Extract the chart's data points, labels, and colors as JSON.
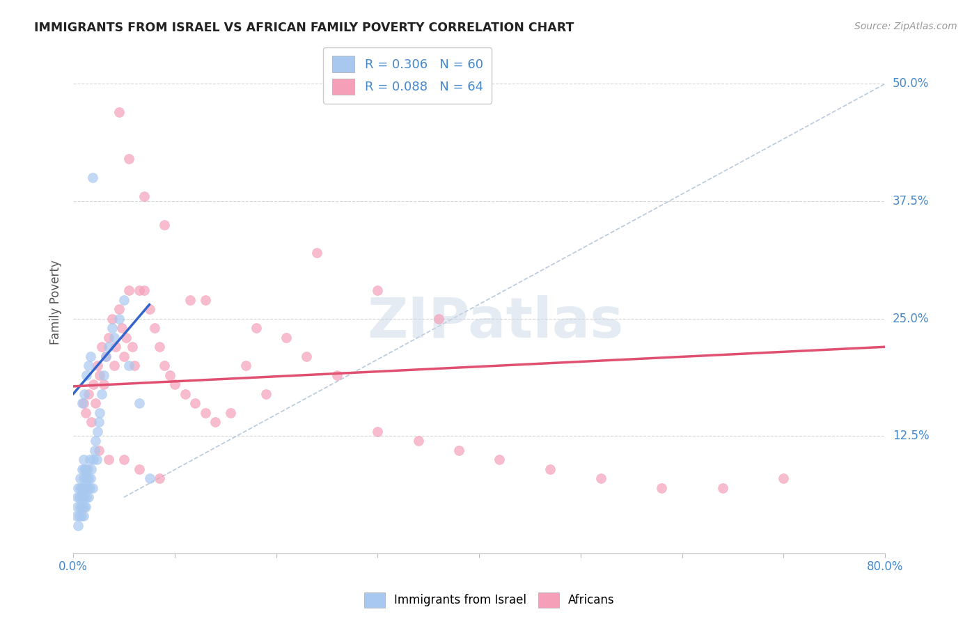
{
  "title": "IMMIGRANTS FROM ISRAEL VS AFRICAN FAMILY POVERTY CORRELATION CHART",
  "source": "Source: ZipAtlas.com",
  "ylabel": "Family Poverty",
  "ytick_values": [
    0.0,
    0.125,
    0.25,
    0.375,
    0.5
  ],
  "ytick_labels": [
    "",
    "12.5%",
    "25.0%",
    "37.5%",
    "50.0%"
  ],
  "xlim": [
    0.0,
    0.8
  ],
  "ylim": [
    0.0,
    0.535
  ],
  "legend_r1": "R = 0.306   N = 60",
  "legend_r2": "R = 0.088   N = 64",
  "watermark": "ZIPatlas",
  "background_color": "#ffffff",
  "grid_color": "#cccccc",
  "blue_scatter_color": "#a8c8f0",
  "pink_scatter_color": "#f5a0b8",
  "blue_line_color": "#3366cc",
  "pink_line_color": "#e05070",
  "dashed_line_color": "#b0c4d8",
  "axis_label_color": "#4488cc",
  "title_color": "#222222",
  "source_color": "#999999",
  "blue_points_x": [
    0.003,
    0.004,
    0.004,
    0.005,
    0.005,
    0.006,
    0.006,
    0.007,
    0.007,
    0.007,
    0.008,
    0.008,
    0.009,
    0.009,
    0.009,
    0.01,
    0.01,
    0.01,
    0.01,
    0.011,
    0.011,
    0.011,
    0.012,
    0.012,
    0.012,
    0.013,
    0.013,
    0.014,
    0.014,
    0.015,
    0.015,
    0.016,
    0.016,
    0.017,
    0.018,
    0.019,
    0.02,
    0.021,
    0.022,
    0.023,
    0.024,
    0.025,
    0.026,
    0.028,
    0.03,
    0.032,
    0.035,
    0.038,
    0.04,
    0.045,
    0.05,
    0.055,
    0.065,
    0.075,
    0.009,
    0.011,
    0.013,
    0.015,
    0.017,
    0.019
  ],
  "blue_points_y": [
    0.04,
    0.05,
    0.06,
    0.03,
    0.07,
    0.04,
    0.06,
    0.05,
    0.07,
    0.08,
    0.04,
    0.06,
    0.05,
    0.07,
    0.09,
    0.04,
    0.06,
    0.08,
    0.1,
    0.05,
    0.07,
    0.09,
    0.05,
    0.07,
    0.09,
    0.06,
    0.08,
    0.07,
    0.09,
    0.06,
    0.08,
    0.07,
    0.1,
    0.08,
    0.09,
    0.07,
    0.1,
    0.11,
    0.12,
    0.1,
    0.13,
    0.14,
    0.15,
    0.17,
    0.19,
    0.21,
    0.22,
    0.24,
    0.23,
    0.25,
    0.27,
    0.2,
    0.16,
    0.08,
    0.16,
    0.17,
    0.19,
    0.2,
    0.21,
    0.4
  ],
  "pink_points_x": [
    0.01,
    0.012,
    0.015,
    0.018,
    0.02,
    0.022,
    0.024,
    0.026,
    0.028,
    0.03,
    0.032,
    0.035,
    0.038,
    0.04,
    0.042,
    0.045,
    0.048,
    0.05,
    0.052,
    0.055,
    0.058,
    0.06,
    0.065,
    0.07,
    0.075,
    0.08,
    0.085,
    0.09,
    0.095,
    0.1,
    0.11,
    0.12,
    0.13,
    0.14,
    0.155,
    0.17,
    0.19,
    0.21,
    0.23,
    0.26,
    0.3,
    0.34,
    0.38,
    0.42,
    0.47,
    0.52,
    0.58,
    0.64,
    0.7,
    0.045,
    0.055,
    0.07,
    0.09,
    0.13,
    0.18,
    0.24,
    0.3,
    0.36,
    0.025,
    0.035,
    0.05,
    0.065,
    0.085,
    0.115
  ],
  "pink_points_y": [
    0.16,
    0.15,
    0.17,
    0.14,
    0.18,
    0.16,
    0.2,
    0.19,
    0.22,
    0.18,
    0.21,
    0.23,
    0.25,
    0.2,
    0.22,
    0.26,
    0.24,
    0.21,
    0.23,
    0.28,
    0.22,
    0.2,
    0.28,
    0.28,
    0.26,
    0.24,
    0.22,
    0.2,
    0.19,
    0.18,
    0.17,
    0.16,
    0.15,
    0.14,
    0.15,
    0.2,
    0.17,
    0.23,
    0.21,
    0.19,
    0.13,
    0.12,
    0.11,
    0.1,
    0.09,
    0.08,
    0.07,
    0.07,
    0.08,
    0.47,
    0.42,
    0.38,
    0.35,
    0.27,
    0.24,
    0.32,
    0.28,
    0.25,
    0.11,
    0.1,
    0.1,
    0.09,
    0.08,
    0.27
  ],
  "blue_line_x": [
    0.0,
    0.075
  ],
  "blue_line_y": [
    0.17,
    0.265
  ],
  "pink_line_x": [
    0.0,
    0.8
  ],
  "pink_line_y": [
    0.178,
    0.22
  ],
  "dashed_line_x": [
    0.05,
    0.8
  ],
  "dashed_line_y": [
    0.06,
    0.5
  ]
}
